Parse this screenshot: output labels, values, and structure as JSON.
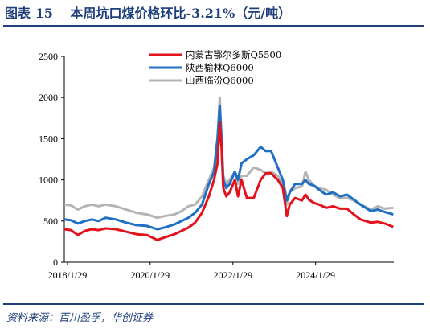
{
  "figure": {
    "label": "图表",
    "number": "15",
    "title": "本周坑口煤价格环比-3.21%（元/吨）"
  },
  "source": "资料来源：百川盈孚，华创证券",
  "chart_data": {
    "type": "line",
    "title": "本周坑口煤价格环比-3.21%（元/吨）",
    "xlabel": "",
    "ylabel": "",
    "ylim": [
      0,
      2500
    ],
    "yticks": [
      0,
      500,
      1000,
      1500,
      2000,
      2500
    ],
    "xlim": [
      "2018-01-01",
      "2025-12-20"
    ],
    "xticks": [
      "2018/1/29",
      "2020/1/29",
      "2022/1/29",
      "2024/1/29"
    ],
    "legend_position": "top-center",
    "grid": false,
    "series": [
      {
        "name": "内蒙古鄂尔多斯Q5500",
        "color": "#e3121c",
        "points": [
          [
            "2018-01-01",
            400
          ],
          [
            "2018-03-01",
            390
          ],
          [
            "2018-05-01",
            330
          ],
          [
            "2018-07-01",
            380
          ],
          [
            "2018-09-01",
            400
          ],
          [
            "2018-11-01",
            390
          ],
          [
            "2019-01-01",
            410
          ],
          [
            "2019-04-01",
            400
          ],
          [
            "2019-07-01",
            370
          ],
          [
            "2019-10-01",
            340
          ],
          [
            "2020-01-01",
            330
          ],
          [
            "2020-04-01",
            270
          ],
          [
            "2020-06-01",
            300
          ],
          [
            "2020-09-01",
            340
          ],
          [
            "2020-11-01",
            380
          ],
          [
            "2021-01-01",
            420
          ],
          [
            "2021-03-01",
            480
          ],
          [
            "2021-05-01",
            600
          ],
          [
            "2021-07-01",
            800
          ],
          [
            "2021-08-15",
            1000
          ],
          [
            "2021-09-15",
            1200
          ],
          [
            "2021-10-05",
            1700
          ],
          [
            "2021-10-20",
            1400
          ],
          [
            "2021-11-05",
            900
          ],
          [
            "2021-12-01",
            800
          ],
          [
            "2022-01-01",
            850
          ],
          [
            "2022-02-15",
            1000
          ],
          [
            "2022-03-15",
            800
          ],
          [
            "2022-04-15",
            1000
          ],
          [
            "2022-06-01",
            780
          ],
          [
            "2022-08-01",
            780
          ],
          [
            "2022-10-01",
            1000
          ],
          [
            "2022-11-15",
            1080
          ],
          [
            "2023-01-01",
            1080
          ],
          [
            "2023-03-01",
            1000
          ],
          [
            "2023-04-15",
            900
          ],
          [
            "2023-05-20",
            560
          ],
          [
            "2023-06-15",
            700
          ],
          [
            "2023-08-01",
            780
          ],
          [
            "2023-10-01",
            750
          ],
          [
            "2023-11-01",
            820
          ],
          [
            "2023-12-01",
            760
          ],
          [
            "2024-01-15",
            720
          ],
          [
            "2024-03-01",
            700
          ],
          [
            "2024-05-01",
            660
          ],
          [
            "2024-07-01",
            680
          ],
          [
            "2024-09-01",
            650
          ],
          [
            "2024-11-01",
            650
          ],
          [
            "2025-01-01",
            580
          ],
          [
            "2025-03-01",
            520
          ],
          [
            "2025-06-01",
            480
          ],
          [
            "2025-08-01",
            490
          ],
          [
            "2025-10-01",
            470
          ],
          [
            "2025-12-15",
            430
          ]
        ]
      },
      {
        "name": "陕西榆林Q6000",
        "color": "#1f6fc5",
        "points": [
          [
            "2018-01-01",
            520
          ],
          [
            "2018-03-01",
            510
          ],
          [
            "2018-05-01",
            470
          ],
          [
            "2018-07-01",
            500
          ],
          [
            "2018-09-01",
            520
          ],
          [
            "2018-11-01",
            500
          ],
          [
            "2019-01-01",
            540
          ],
          [
            "2019-04-01",
            520
          ],
          [
            "2019-07-01",
            480
          ],
          [
            "2019-10-01",
            450
          ],
          [
            "2020-01-01",
            440
          ],
          [
            "2020-04-01",
            400
          ],
          [
            "2020-06-01",
            420
          ],
          [
            "2020-09-01",
            460
          ],
          [
            "2020-11-01",
            500
          ],
          [
            "2021-01-01",
            540
          ],
          [
            "2021-03-01",
            600
          ],
          [
            "2021-05-01",
            700
          ],
          [
            "2021-07-01",
            950
          ],
          [
            "2021-08-15",
            1100
          ],
          [
            "2021-09-15",
            1500
          ],
          [
            "2021-10-05",
            1900
          ],
          [
            "2021-10-20",
            1500
          ],
          [
            "2021-11-05",
            1000
          ],
          [
            "2021-12-01",
            900
          ],
          [
            "2022-01-01",
            950
          ],
          [
            "2022-02-15",
            1100
          ],
          [
            "2022-03-15",
            1000
          ],
          [
            "2022-04-15",
            1200
          ],
          [
            "2022-06-01",
            1250
          ],
          [
            "2022-08-01",
            1300
          ],
          [
            "2022-10-01",
            1400
          ],
          [
            "2022-11-15",
            1350
          ],
          [
            "2023-01-01",
            1350
          ],
          [
            "2023-03-01",
            1150
          ],
          [
            "2023-04-15",
            1000
          ],
          [
            "2023-05-20",
            750
          ],
          [
            "2023-06-15",
            850
          ],
          [
            "2023-08-01",
            950
          ],
          [
            "2023-10-01",
            950
          ],
          [
            "2023-11-01",
            1000
          ],
          [
            "2023-12-01",
            950
          ],
          [
            "2024-01-15",
            930
          ],
          [
            "2024-03-01",
            880
          ],
          [
            "2024-05-01",
            820
          ],
          [
            "2024-07-01",
            850
          ],
          [
            "2024-09-01",
            800
          ],
          [
            "2024-11-01",
            820
          ],
          [
            "2025-01-01",
            760
          ],
          [
            "2025-03-01",
            700
          ],
          [
            "2025-06-01",
            620
          ],
          [
            "2025-08-01",
            640
          ],
          [
            "2025-10-01",
            610
          ],
          [
            "2025-12-15",
            580
          ]
        ]
      },
      {
        "name": "山西临汾Q6000",
        "color": "#b4b4b4",
        "points": [
          [
            "2018-01-01",
            700
          ],
          [
            "2018-03-01",
            690
          ],
          [
            "2018-05-01",
            640
          ],
          [
            "2018-07-01",
            680
          ],
          [
            "2018-09-01",
            700
          ],
          [
            "2018-11-01",
            680
          ],
          [
            "2019-01-01",
            700
          ],
          [
            "2019-04-01",
            680
          ],
          [
            "2019-07-01",
            640
          ],
          [
            "2019-10-01",
            600
          ],
          [
            "2020-01-01",
            580
          ],
          [
            "2020-04-01",
            540
          ],
          [
            "2020-06-01",
            560
          ],
          [
            "2020-09-01",
            580
          ],
          [
            "2020-11-01",
            620
          ],
          [
            "2021-01-01",
            680
          ],
          [
            "2021-03-01",
            700
          ],
          [
            "2021-05-01",
            800
          ],
          [
            "2021-07-01",
            1000
          ],
          [
            "2021-08-15",
            1150
          ],
          [
            "2021-09-15",
            1500
          ],
          [
            "2021-10-05",
            2000
          ],
          [
            "2021-10-20",
            1500
          ],
          [
            "2021-11-05",
            1050
          ],
          [
            "2021-12-01",
            950
          ],
          [
            "2022-01-01",
            1000
          ],
          [
            "2022-02-15",
            1100
          ],
          [
            "2022-03-15",
            950
          ],
          [
            "2022-04-15",
            1050
          ],
          [
            "2022-06-01",
            1050
          ],
          [
            "2022-08-01",
            1150
          ],
          [
            "2022-10-01",
            1120
          ],
          [
            "2022-11-15",
            1080
          ],
          [
            "2023-01-01",
            1100
          ],
          [
            "2023-03-01",
            1050
          ],
          [
            "2023-04-15",
            950
          ],
          [
            "2023-05-20",
            700
          ],
          [
            "2023-06-15",
            850
          ],
          [
            "2023-08-01",
            900
          ],
          [
            "2023-10-01",
            920
          ],
          [
            "2023-11-01",
            1100
          ],
          [
            "2023-12-01",
            1000
          ],
          [
            "2024-01-15",
            930
          ],
          [
            "2024-03-01",
            900
          ],
          [
            "2024-05-01",
            880
          ],
          [
            "2024-07-01",
            820
          ],
          [
            "2024-09-01",
            780
          ],
          [
            "2024-11-01",
            780
          ],
          [
            "2025-01-01",
            750
          ],
          [
            "2025-03-01",
            700
          ],
          [
            "2025-06-01",
            640
          ],
          [
            "2025-08-01",
            680
          ],
          [
            "2025-10-01",
            650
          ],
          [
            "2025-12-15",
            660
          ]
        ]
      }
    ]
  }
}
